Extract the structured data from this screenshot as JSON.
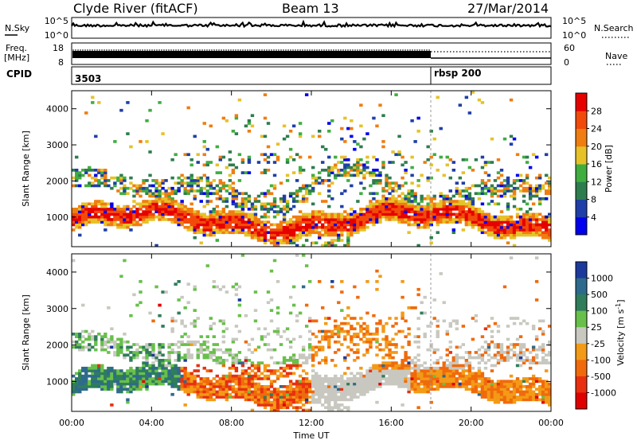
{
  "header": {
    "station": "Clyde River (fitACF)",
    "beam": "Beam 13",
    "date": "27/Mar/2014"
  },
  "left_labels": {
    "nsky": "N.Sky",
    "freq_line1": "Freq.",
    "freq_line2": "[MHz]",
    "cpid": "CPID"
  },
  "right_labels": {
    "nsearch": "N.Search",
    "nave": "Nave"
  },
  "noise_axis": {
    "left_top": "10^5",
    "left_bottom": "10^0",
    "right_top": "10^5",
    "right_bottom": "10^0"
  },
  "freq_axis": {
    "left_top": "18",
    "left_bottom": "8",
    "right_top": "60",
    "right_bottom": "0"
  },
  "cpid_values": [
    "3503",
    "rbsp 200"
  ],
  "colors": {
    "power": [
      "#0000ee",
      "#1f3fa8",
      "#2e7d4e",
      "#3fae3f",
      "#e6c228",
      "#f07d10",
      "#f24a0a",
      "#e60000"
    ],
    "velocity": [
      "#1c3a9c",
      "#2e6a8c",
      "#2f7d5a",
      "#68c04a",
      "#c8c8c0",
      "#f39a16",
      "#f06a0c",
      "#e83010",
      "#e00000"
    ]
  },
  "chart_data": [
    {
      "type": "heatmap",
      "title": "",
      "ylabel": "Slant Range [km]",
      "xlabel": "",
      "ylim": [
        180,
        4500
      ],
      "xlim_hours": [
        0,
        24
      ],
      "yticks": [
        "1000",
        "2000",
        "3000",
        "4000"
      ],
      "colorbar": {
        "label": "Power [dB]",
        "ticks": [
          "4",
          "8",
          "12",
          "16",
          "20",
          "24",
          "28"
        ]
      }
    },
    {
      "type": "heatmap",
      "title": "",
      "ylabel": "Slant Range [km]",
      "xlabel": "Time UT",
      "ylim": [
        180,
        4500
      ],
      "xlim_hours": [
        0,
        24
      ],
      "xticks": [
        "00:00",
        "04:00",
        "08:00",
        "12:00",
        "16:00",
        "20:00",
        "00:00"
      ],
      "yticks": [
        "1000",
        "2000",
        "3000",
        "4000"
      ],
      "colorbar": {
        "label": "Velocity [m s^-1]",
        "ticks": [
          "1000",
          "500",
          "100",
          "25",
          "-25",
          "-100",
          "-500",
          "-1000"
        ]
      }
    }
  ]
}
